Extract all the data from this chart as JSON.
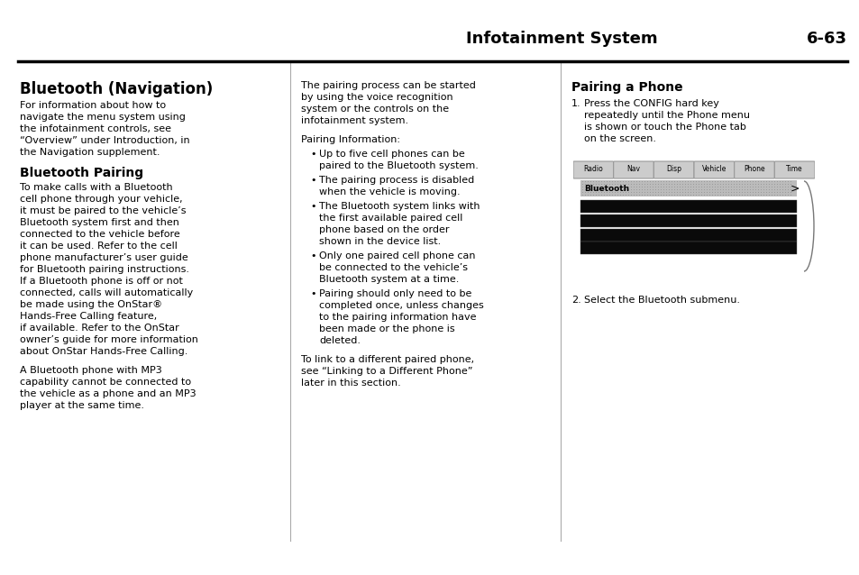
{
  "page_bg": "#ffffff",
  "header_text": "Infotainment System",
  "header_num": "6-63",
  "text_color": "#000000",
  "col1_title": "Bluetooth (Navigation)",
  "col1_para1": "For information about how to\nnavigate the menu system using\nthe infotainment controls, see\n“Overview” under Introduction, in\nthe Navigation supplement.",
  "col1_subtitle": "Bluetooth Pairing",
  "col1_para2": "To make calls with a Bluetooth\ncell phone through your vehicle,\nit must be paired to the vehicle’s\nBluetooth system first and then\nconnected to the vehicle before\nit can be used. Refer to the cell\nphone manufacturer’s user guide\nfor Bluetooth pairing instructions.\nIf a Bluetooth phone is off or not\nconnected, calls will automatically\nbe made using the OnStar®\nHands-Free Calling feature,\nif available. Refer to the OnStar\nowner’s guide for more information\nabout OnStar Hands-Free Calling.",
  "col1_para3": "A Bluetooth phone with MP3\ncapability cannot be connected to\nthe vehicle as a phone and an MP3\nplayer at the same time.",
  "col2_para1": "The pairing process can be started\nby using the voice recognition\nsystem or the controls on the\ninfotainment system.",
  "col2_para2": "Pairing Information:",
  "col2_bullets": [
    "Up to five cell phones can be\npaired to the Bluetooth system.",
    "The pairing process is disabled\nwhen the vehicle is moving.",
    "The Bluetooth system links with\nthe first available paired cell\nphone based on the order\nshown in the device list.",
    "Only one paired cell phone can\nbe connected to the vehicle’s\nBluetooth system at a time.",
    "Pairing should only need to be\ncompleted once, unless changes\nto the pairing information have\nbeen made or the phone is\ndeleted."
  ],
  "col2_para3": "To link to a different paired phone,\nsee “Linking to a Different Phone”\nlater in this section.",
  "col3_subtitle": "Pairing a Phone",
  "col3_step1_num": "1.",
  "col3_step1_lines": [
    "Press the CONFIG hard key",
    "repeatedly until the Phone menu",
    "is shown or touch the Phone tab",
    "on the screen."
  ],
  "col3_step2_num": "2.",
  "col3_step2_text": "Select the Bluetooth submenu.",
  "screen_tabs": [
    "Radio",
    "Nav",
    "Disp",
    "Vehicle",
    "Phone",
    "Time"
  ],
  "screen_menu_item": "Bluetooth"
}
